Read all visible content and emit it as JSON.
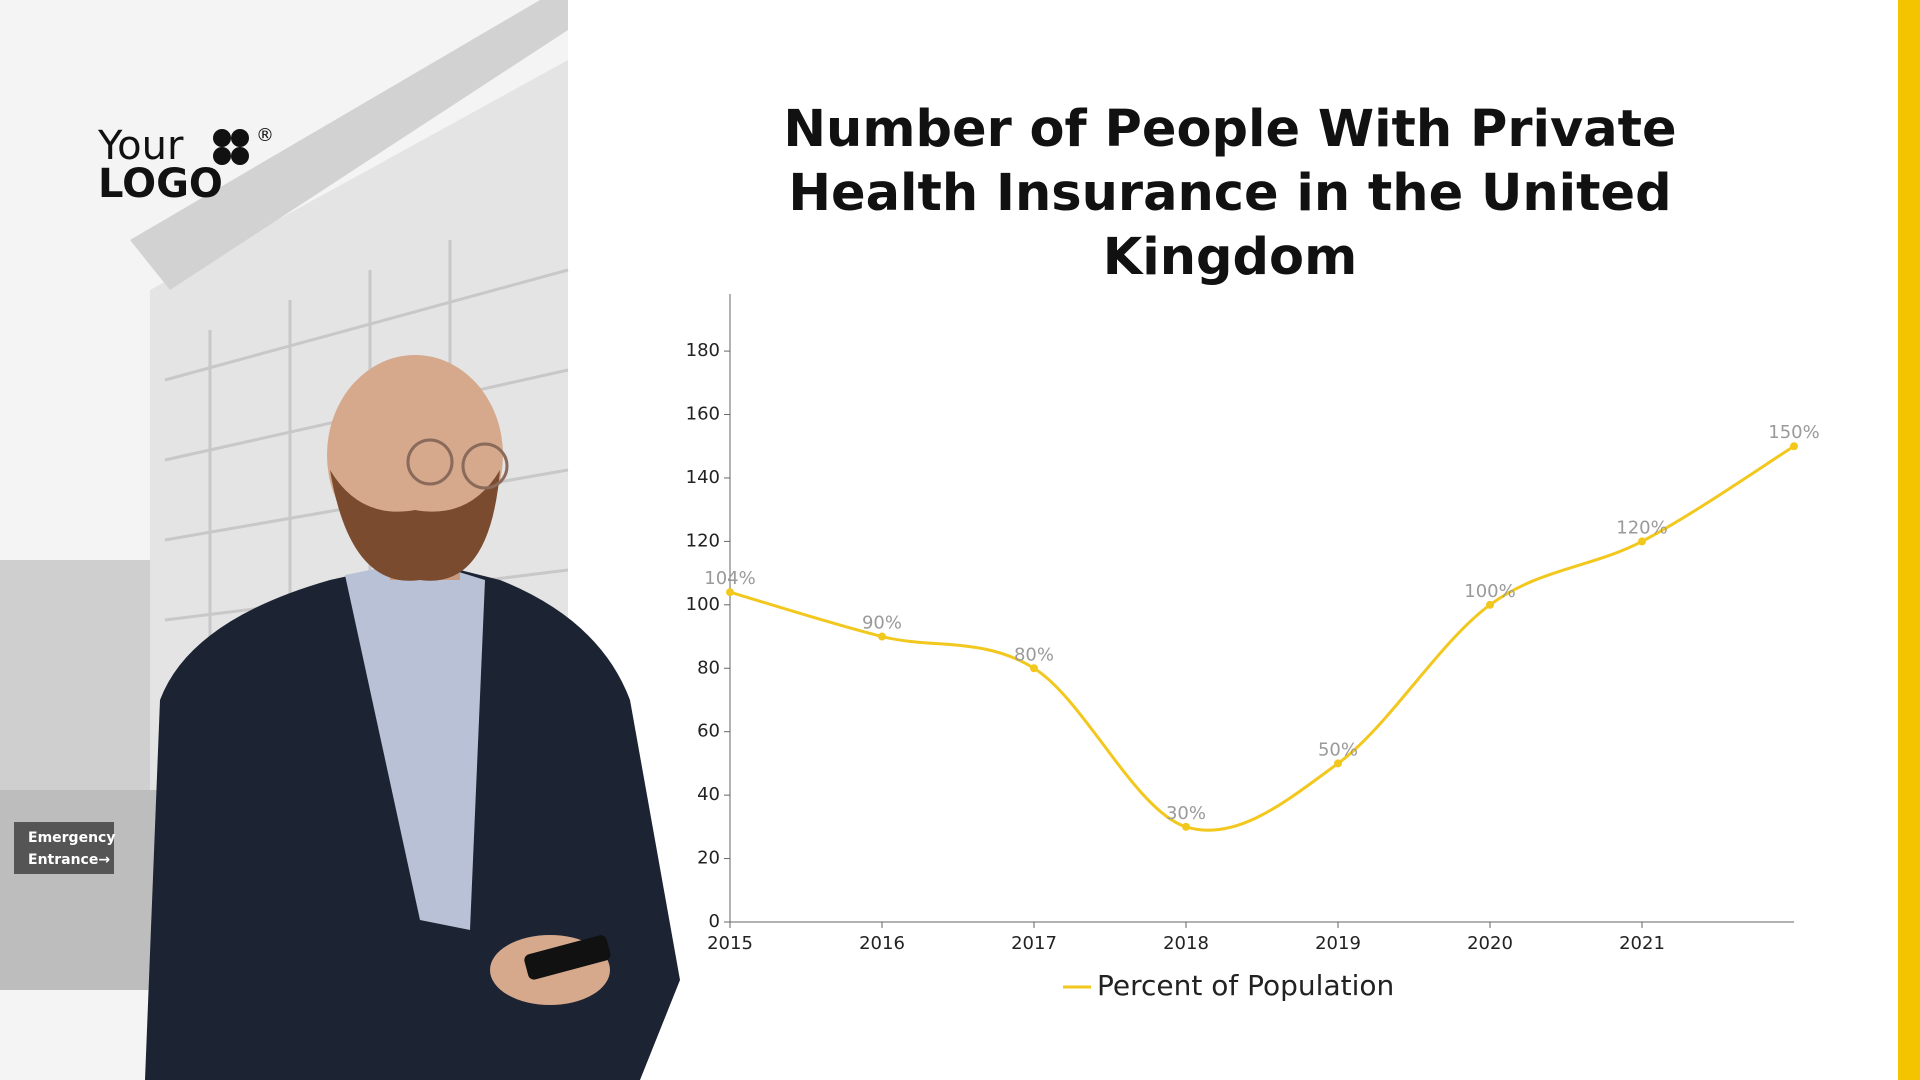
{
  "logo": {
    "line1": "Your",
    "line2": "LOGO",
    "mark": "®"
  },
  "photo_sign": {
    "line1": "Emergency",
    "line2": "Entrance→"
  },
  "chart_data": {
    "type": "line",
    "title": "Number of People With Private Health Insurance in the United Kingdom",
    "x": [
      2015,
      2016,
      2017,
      2018,
      2019,
      2020,
      2021,
      2022
    ],
    "xlim": [
      2015,
      2022
    ],
    "xticks": [
      2015,
      2016,
      2017,
      2018,
      2019,
      2020,
      2021
    ],
    "ylim": [
      0,
      198
    ],
    "yticks": [
      0,
      20,
      40,
      60,
      80,
      100,
      120,
      140,
      160,
      180
    ],
    "legend": "bottom",
    "series": [
      {
        "name": "Percent of Population",
        "color": "#f2c81e",
        "values": [
          104,
          90,
          80,
          30,
          50,
          100,
          120,
          150
        ],
        "value_labels": [
          "104%",
          "90%",
          "80%",
          "30%",
          "50%",
          "100%",
          "120%",
          "150%"
        ]
      }
    ]
  }
}
